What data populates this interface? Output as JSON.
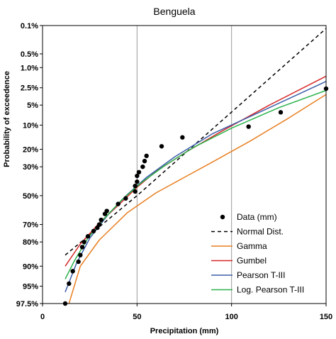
{
  "chart_data": {
    "type": "line",
    "title": "Benguela",
    "xlabel": "Precipitation (mm)",
    "ylabel": "Probability of exceedence",
    "xlim": [
      0,
      150
    ],
    "x_ticks": [
      0,
      50,
      100,
      150
    ],
    "y_scale": "normal-probability",
    "ylim": [
      0.1,
      97.5
    ],
    "y_ticks": [
      {
        "p": 0.1,
        "label": "0.1%"
      },
      {
        "p": 0.5,
        "label": "0.5%"
      },
      {
        "p": 1.0,
        "label": "1.0%"
      },
      {
        "p": 2.5,
        "label": "2.5%"
      },
      {
        "p": 5,
        "label": "5%"
      },
      {
        "p": 10,
        "label": "10%"
      },
      {
        "p": 20,
        "label": "20%"
      },
      {
        "p": 30,
        "label": "30%"
      },
      {
        "p": 50,
        "label": "50%"
      },
      {
        "p": 70,
        "label": "70%"
      },
      {
        "p": 80,
        "label": "80%"
      },
      {
        "p": 90,
        "label": "90%"
      },
      {
        "p": 95,
        "label": "95%"
      },
      {
        "p": 97.5,
        "label": "97.5%"
      }
    ],
    "grid": "vertical at x ticks",
    "legend_position": "bottom-right",
    "data_points": {
      "name": "Data (mm)",
      "points": [
        [
          12,
          97.5
        ],
        [
          14,
          94.5
        ],
        [
          16,
          91.5
        ],
        [
          19,
          88.5
        ],
        [
          20,
          86
        ],
        [
          21,
          82.5
        ],
        [
          22,
          80
        ],
        [
          24,
          77
        ],
        [
          27,
          74
        ],
        [
          29,
          72
        ],
        [
          30,
          70
        ],
        [
          31,
          67
        ],
        [
          33,
          63
        ],
        [
          34,
          61
        ],
        [
          40,
          56
        ],
        [
          44,
          52
        ],
        [
          49,
          47
        ],
        [
          49,
          43
        ],
        [
          50,
          40
        ],
        [
          50,
          36
        ],
        [
          51,
          33.5
        ],
        [
          53,
          30
        ],
        [
          54,
          26.5
        ],
        [
          55,
          23.5
        ],
        [
          63,
          18.5
        ],
        [
          74,
          14.5
        ],
        [
          109,
          10.5
        ],
        [
          126,
          6.5
        ],
        [
          150,
          2.6
        ]
      ]
    },
    "series": [
      {
        "name": "Normal Dist.",
        "color": "#000000",
        "dash": "dashed",
        "points": [
          [
            12,
            86
          ],
          [
            50,
            50
          ],
          [
            150,
            0.12
          ]
        ]
      },
      {
        "name": "Gamma",
        "color": "#e87f21",
        "dash": "solid",
        "points": [
          [
            14,
            97.5
          ],
          [
            20,
            90
          ],
          [
            30,
            79
          ],
          [
            45,
            62
          ],
          [
            60,
            48
          ],
          [
            75,
            37
          ],
          [
            90,
            27
          ],
          [
            110,
            16
          ],
          [
            130,
            8
          ],
          [
            150,
            3.3
          ]
        ]
      },
      {
        "name": "Gumbel",
        "color": "#d62728",
        "dash": "solid",
        "points": [
          [
            12,
            90
          ],
          [
            20,
            81
          ],
          [
            30,
            69
          ],
          [
            40,
            57
          ],
          [
            50,
            44
          ],
          [
            60,
            33
          ],
          [
            75,
            22
          ],
          [
            95,
            12
          ],
          [
            120,
            5
          ],
          [
            150,
            1.5
          ]
        ]
      },
      {
        "name": "Pearson T-III",
        "color": "#3b5ea8",
        "dash": "solid",
        "points": [
          [
            12,
            96
          ],
          [
            18,
            89
          ],
          [
            25,
            78
          ],
          [
            35,
            63
          ],
          [
            45,
            49
          ],
          [
            55,
            37
          ],
          [
            70,
            24
          ],
          [
            90,
            13
          ],
          [
            120,
            5.5
          ],
          [
            150,
            1.9
          ]
        ]
      },
      {
        "name": "Log. Pearson T-III",
        "color": "#2bb24c",
        "dash": "solid",
        "points": [
          [
            12,
            93.5
          ],
          [
            17,
            88
          ],
          [
            24,
            78
          ],
          [
            32,
            67
          ],
          [
            42,
            53
          ],
          [
            52,
            41
          ],
          [
            65,
            29
          ],
          [
            80,
            19
          ],
          [
            100,
            11
          ],
          [
            125,
            5.5
          ],
          [
            150,
            2.8
          ]
        ]
      }
    ]
  }
}
